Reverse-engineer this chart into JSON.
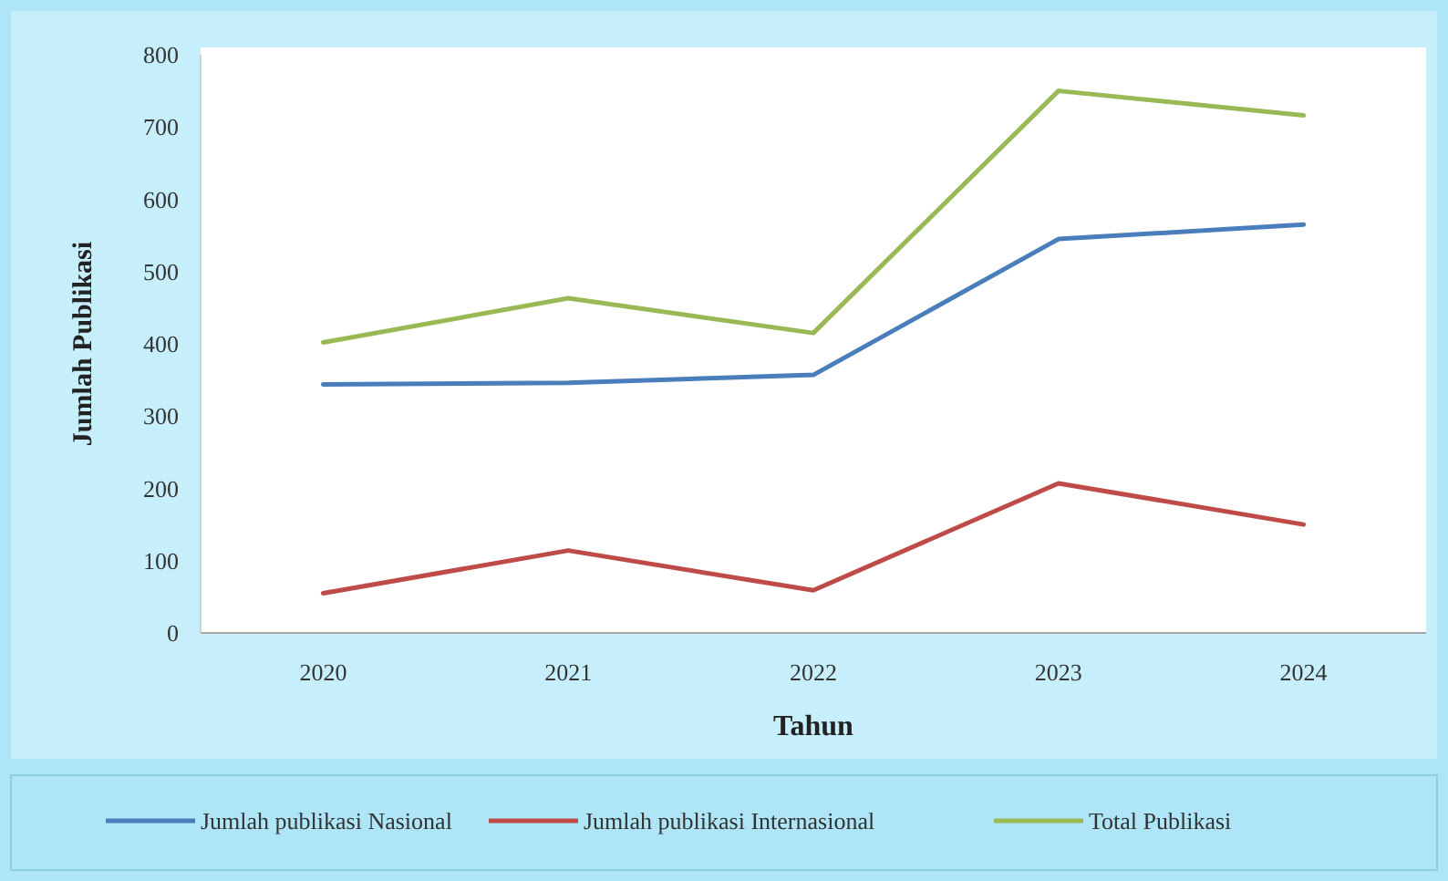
{
  "chart_data": {
    "type": "line",
    "xlabel": "Tahun",
    "ylabel": "Jumlah Publikasi",
    "categories": [
      "2020",
      "2021",
      "2022",
      "2023",
      "2024"
    ],
    "series": [
      {
        "name": "Jumlah publikasi Nasional",
        "color": "#4a7ebb",
        "values": [
          344,
          346,
          357,
          545,
          565
        ]
      },
      {
        "name": "Jumlah publikasi Internasional",
        "color": "#be4b48",
        "values": [
          55,
          114,
          59,
          207,
          150
        ]
      },
      {
        "name": "Total Publikasi",
        "color": "#98b954",
        "values": [
          402,
          463,
          415,
          750,
          716
        ]
      }
    ],
    "ylim": [
      0,
      800
    ],
    "yticks": [
      0,
      100,
      200,
      300,
      400,
      500,
      600,
      700,
      800
    ],
    "grid": false,
    "legend": "bottom",
    "marker": "none",
    "line_style": "solid"
  }
}
